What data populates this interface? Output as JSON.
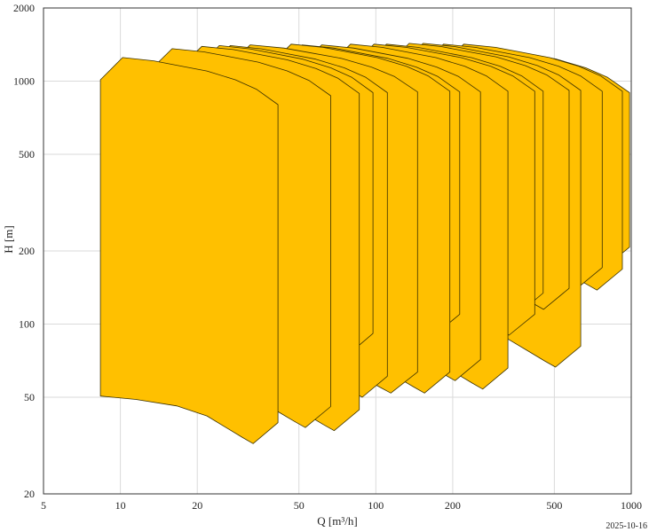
{
  "chart_data": {
    "type": "area",
    "xlabel": "Q [m³/h]",
    "ylabel": "H [m]",
    "date": "2025-10-16",
    "x_scale": "log",
    "y_scale": "log",
    "xlim": [
      5,
      1000
    ],
    "ylim": [
      20,
      2000
    ],
    "x_ticks": [
      "5",
      "10",
      "20",
      "50",
      "100",
      "200",
      "500",
      "1000"
    ],
    "y_ticks": [
      "20",
      "50",
      "100",
      "200",
      "500",
      "1000",
      "2000"
    ],
    "grid": true,
    "fill_color": "#FFC000",
    "edge_color": "#3a3000",
    "envelopes": [
      {
        "q_min": 8.35,
        "q_max": 41.4,
        "h_max": 1250,
        "h_min": 32.2
      },
      {
        "q_min": 13,
        "q_max": 66.6,
        "h_max": 1360,
        "h_min": 37.5
      },
      {
        "q_min": 17,
        "q_max": 86.2,
        "h_max": 1390,
        "h_min": 36.4
      },
      {
        "q_min": 20,
        "q_max": 97.5,
        "h_max": 1400,
        "h_min": 75
      },
      {
        "q_min": 22,
        "q_max": 111,
        "h_max": 1400,
        "h_min": 50
      },
      {
        "q_min": 26,
        "q_max": 145.7,
        "h_max": 1410,
        "h_min": 52
      },
      {
        "q_min": 38,
        "q_max": 195,
        "h_max": 1420,
        "h_min": 52
      },
      {
        "q_min": 42,
        "q_max": 213,
        "h_max": 1410,
        "h_min": 90
      },
      {
        "q_min": 50,
        "q_max": 257,
        "h_max": 1410,
        "h_min": 58.5
      },
      {
        "q_min": 65,
        "q_max": 329,
        "h_max": 1420,
        "h_min": 54
      },
      {
        "q_min": 80,
        "q_max": 419,
        "h_max": 1420,
        "h_min": 90
      },
      {
        "q_min": 90,
        "q_max": 452,
        "h_max": 1420,
        "h_min": 110
      },
      {
        "q_min": 110,
        "q_max": 571,
        "h_max": 1430,
        "h_min": 115
      },
      {
        "q_min": 125,
        "q_max": 634,
        "h_max": 1430,
        "h_min": 66.5
      },
      {
        "q_min": 150,
        "q_max": 770,
        "h_max": 1420,
        "h_min": 140
      },
      {
        "q_min": 180,
        "q_max": 923,
        "h_max": 1420,
        "h_min": 138
      },
      {
        "q_min": 190,
        "q_max": 985,
        "h_max": 1400,
        "h_min": 170
      }
    ]
  }
}
